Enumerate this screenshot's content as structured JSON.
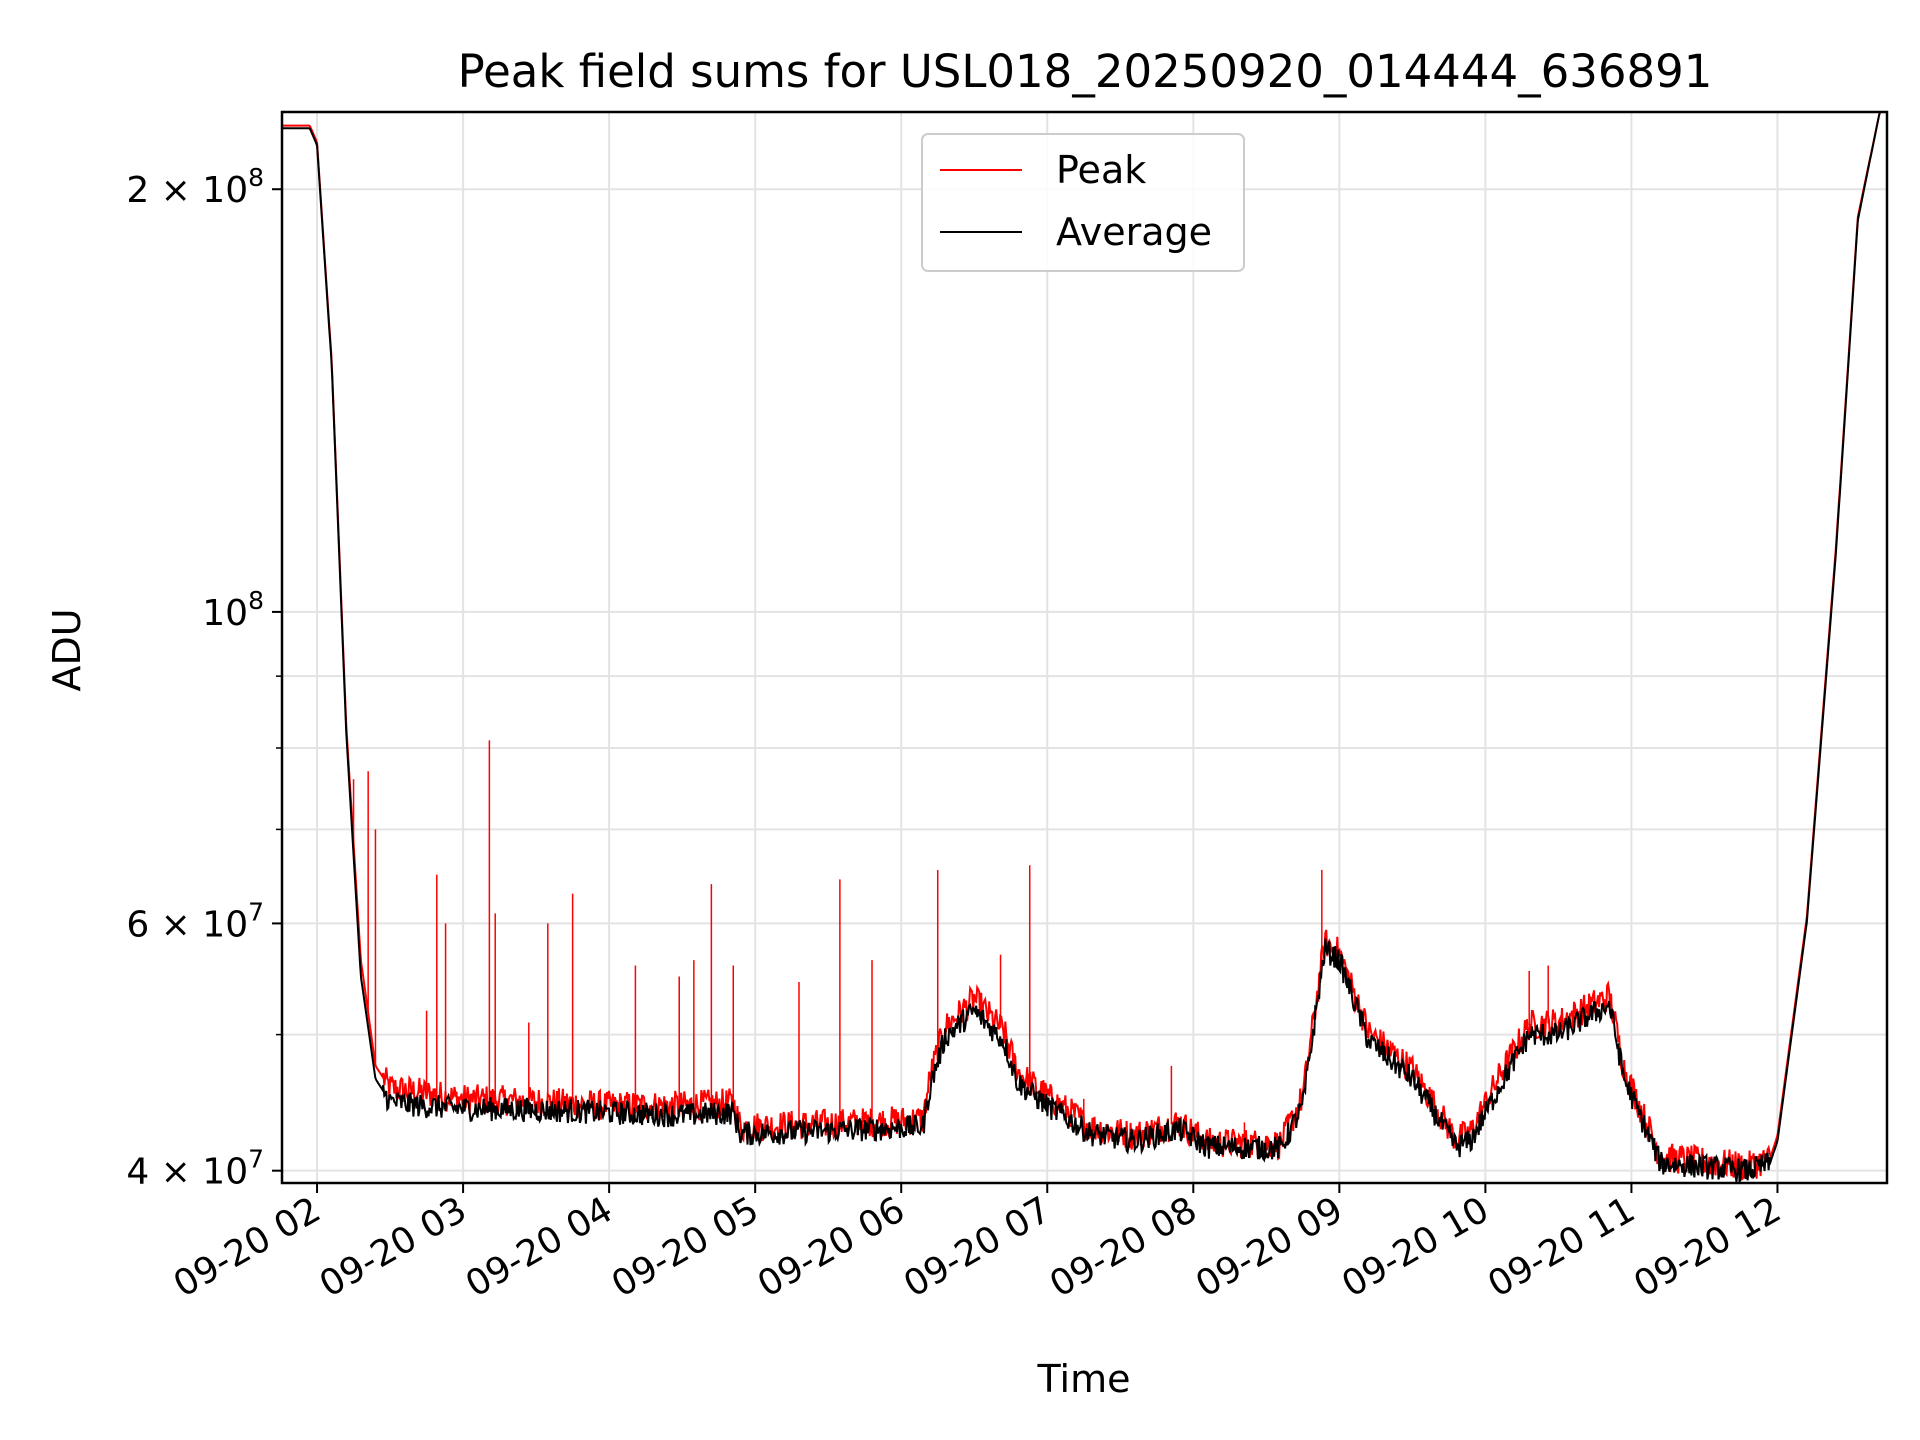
{
  "chart_data": {
    "type": "line",
    "title": "Peak field sums for USL018_20250920_014444_636891",
    "xlabel": "Time",
    "ylabel": "ADU",
    "yscale": "log",
    "ylim": [
      39200000,
      227000000
    ],
    "xlim": [
      1.76,
      12.75
    ],
    "x_unit": "hour of 2025-09-20",
    "x_ticks": [
      {
        "value": 2,
        "label": "09-20 02"
      },
      {
        "value": 3,
        "label": "09-20 03"
      },
      {
        "value": 4,
        "label": "09-20 04"
      },
      {
        "value": 5,
        "label": "09-20 05"
      },
      {
        "value": 6,
        "label": "09-20 06"
      },
      {
        "value": 7,
        "label": "09-20 07"
      },
      {
        "value": 8,
        "label": "09-20 08"
      },
      {
        "value": 9,
        "label": "09-20 09"
      },
      {
        "value": 10,
        "label": "09-20 10"
      },
      {
        "value": 11,
        "label": "09-20 11"
      },
      {
        "value": 12,
        "label": "09-20 12"
      }
    ],
    "y_ticks": [
      {
        "value": 40000000,
        "base": "4 × 10",
        "exp": "7"
      },
      {
        "value": 60000000,
        "base": "6 × 10",
        "exp": "7"
      },
      {
        "value": 100000000,
        "base": "10",
        "exp": "8"
      },
      {
        "value": 200000000,
        "base": "2 × 10",
        "exp": "8"
      }
    ],
    "y_minor_ticks": [
      50000000,
      70000000,
      80000000,
      90000000
    ],
    "grid": true,
    "legend": {
      "position": "top-center",
      "entries": [
        "Peak",
        "Average"
      ]
    },
    "series": [
      {
        "name": "Average",
        "color": "#000000",
        "x": [
          1.76,
          1.95,
          2.0,
          2.1,
          2.2,
          2.3,
          2.4,
          2.5,
          2.7,
          3.0,
          3.5,
          4.0,
          4.5,
          4.85,
          4.9,
          5.5,
          6.15,
          6.2,
          6.3,
          6.5,
          6.7,
          6.8,
          7.0,
          7.3,
          7.6,
          7.9,
          8.1,
          8.6,
          8.75,
          8.9,
          9.0,
          9.2,
          9.5,
          9.8,
          9.9,
          10.1,
          10.3,
          10.5,
          10.7,
          10.85,
          10.95,
          11.2,
          11.8,
          11.95,
          12.0,
          12.2,
          12.4,
          12.55,
          12.7
        ],
        "y": [
          221000000,
          221000000,
          215000000,
          150000000,
          82000000,
          55000000,
          46500000,
          44800000,
          44500000,
          44300000,
          44200000,
          44000000,
          43800000,
          44000000,
          42500000,
          42700000,
          43000000,
          46000000,
          49800000,
          52000000,
          49500000,
          46200000,
          44500000,
          42500000,
          42000000,
          42800000,
          41600000,
          41500000,
          44500000,
          57500000,
          56500000,
          49500000,
          46500000,
          41600000,
          42000000,
          46000000,
          50000000,
          50000000,
          51500000,
          52500000,
          46500000,
          40500000,
          40000000,
          40500000,
          42000000,
          60000000,
          110000000,
          190000000,
          227000000
        ]
      },
      {
        "name": "Peak",
        "color": "#ff0000",
        "x": [
          1.76,
          1.95,
          2.0,
          2.1,
          2.2,
          2.3,
          2.4,
          2.5,
          2.7,
          3.0,
          3.5,
          4.0,
          4.5,
          4.85,
          4.9,
          5.5,
          6.15,
          6.2,
          6.3,
          6.5,
          6.7,
          6.8,
          7.0,
          7.3,
          7.6,
          7.9,
          8.1,
          8.6,
          8.75,
          8.9,
          9.0,
          9.2,
          9.5,
          9.8,
          9.9,
          10.1,
          10.3,
          10.5,
          10.7,
          10.85,
          10.95,
          11.2,
          11.8,
          11.95,
          12.0,
          12.2,
          12.4,
          12.55,
          12.7
        ],
        "y": [
          222000000,
          222000000,
          216000000,
          151000000,
          83000000,
          56500000,
          47500000,
          45800000,
          45500000,
          45000000,
          44800000,
          44500000,
          44500000,
          44700000,
          43000000,
          43200000,
          43500000,
          46800000,
          50600000,
          53000000,
          50300000,
          47000000,
          45200000,
          43000000,
          42400000,
          43300000,
          41900000,
          41800000,
          45200000,
          58200000,
          57200000,
          50200000,
          47200000,
          42100000,
          42600000,
          46800000,
          50800000,
          51000000,
          52300000,
          53300000,
          47300000,
          40900000,
          40300000,
          40800000,
          42400000,
          60500000,
          111000000,
          191000000,
          227000000
        ]
      }
    ],
    "peak_spikes": [
      {
        "x": 2.25,
        "y": 76000000
      },
      {
        "x": 2.35,
        "y": 77000000
      },
      {
        "x": 2.4,
        "y": 70000000
      },
      {
        "x": 2.75,
        "y": 52000000
      },
      {
        "x": 2.82,
        "y": 65000000
      },
      {
        "x": 2.88,
        "y": 60000000
      },
      {
        "x": 3.18,
        "y": 81000000
      },
      {
        "x": 3.22,
        "y": 61000000
      },
      {
        "x": 3.45,
        "y": 51000000
      },
      {
        "x": 3.58,
        "y": 60000000
      },
      {
        "x": 3.75,
        "y": 63000000
      },
      {
        "x": 4.18,
        "y": 56000000
      },
      {
        "x": 4.48,
        "y": 55000000
      },
      {
        "x": 4.58,
        "y": 56500000
      },
      {
        "x": 4.7,
        "y": 64000000
      },
      {
        "x": 4.85,
        "y": 56000000
      },
      {
        "x": 5.3,
        "y": 54500000
      },
      {
        "x": 5.58,
        "y": 64500000
      },
      {
        "x": 5.8,
        "y": 56500000
      },
      {
        "x": 6.25,
        "y": 65500000
      },
      {
        "x": 6.68,
        "y": 57000000
      },
      {
        "x": 6.88,
        "y": 66000000
      },
      {
        "x": 7.25,
        "y": 45000000
      },
      {
        "x": 7.85,
        "y": 47500000
      },
      {
        "x": 8.35,
        "y": 43300000
      },
      {
        "x": 8.88,
        "y": 65500000
      },
      {
        "x": 9.35,
        "y": 49500000
      },
      {
        "x": 10.3,
        "y": 55500000
      },
      {
        "x": 10.43,
        "y": 56000000
      }
    ]
  }
}
